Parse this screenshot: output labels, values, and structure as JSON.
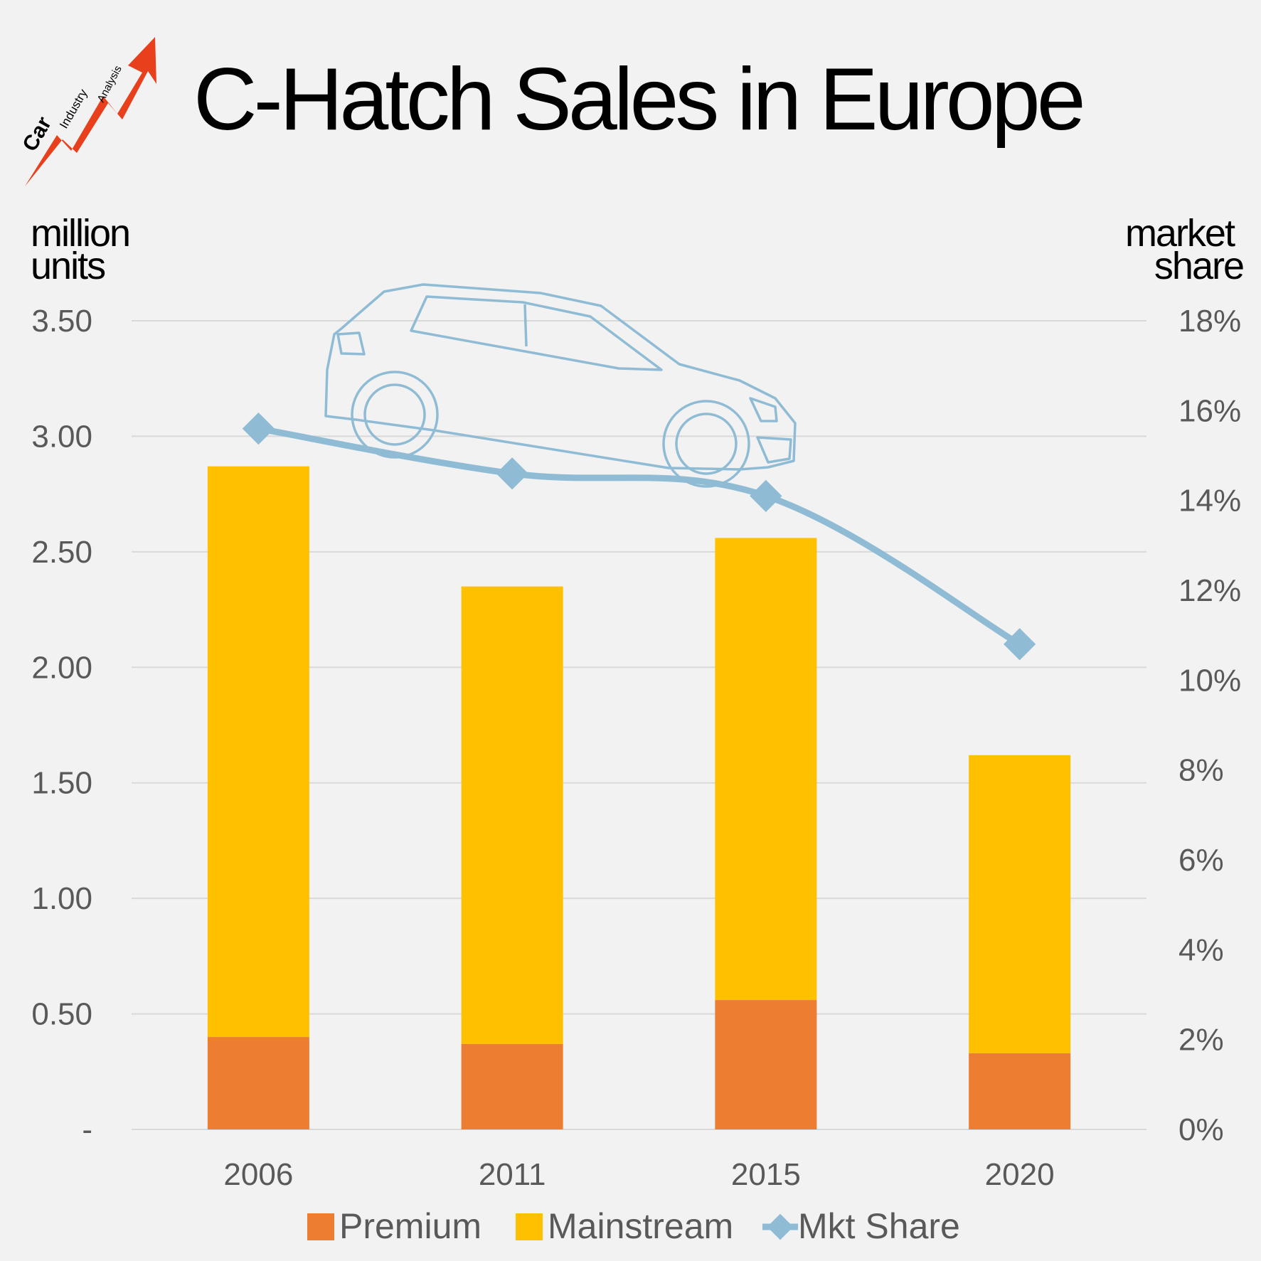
{
  "logo": {
    "words": [
      "Car",
      "Industry",
      "Analysis"
    ]
  },
  "chart_data": {
    "type": "bar",
    "stacked": true,
    "title": "C-Hatch Sales in Europe",
    "ylabel_left": [
      "million",
      "units"
    ],
    "ylabel_right": [
      "market",
      "share"
    ],
    "categories": [
      "2006",
      "2011",
      "2015",
      "2020"
    ],
    "series": [
      {
        "name": "Premium",
        "type": "bar",
        "axis": "left",
        "color": "#ed7d31",
        "values": [
          0.4,
          0.37,
          0.56,
          0.33
        ]
      },
      {
        "name": "Mainstream",
        "type": "bar",
        "axis": "left",
        "color": "#ffc000",
        "values": [
          2.47,
          1.98,
          2.0,
          1.29
        ]
      },
      {
        "name": "Mkt Share",
        "type": "line",
        "axis": "right",
        "color": "#8fbcd4",
        "values": [
          15.6,
          14.6,
          14.1,
          10.8
        ]
      }
    ],
    "ylim_left": [
      0,
      3.5
    ],
    "yticks_left": [
      "-",
      "0.50",
      "1.00",
      "1.50",
      "2.00",
      "2.50",
      "3.00",
      "3.50"
    ],
    "ylim_right": [
      0,
      18
    ],
    "yticks_right": [
      "0%",
      "2%",
      "4%",
      "6%",
      "8%",
      "10%",
      "12%",
      "14%",
      "16%",
      "18%"
    ],
    "grid": true,
    "legend_position": "bottom"
  }
}
